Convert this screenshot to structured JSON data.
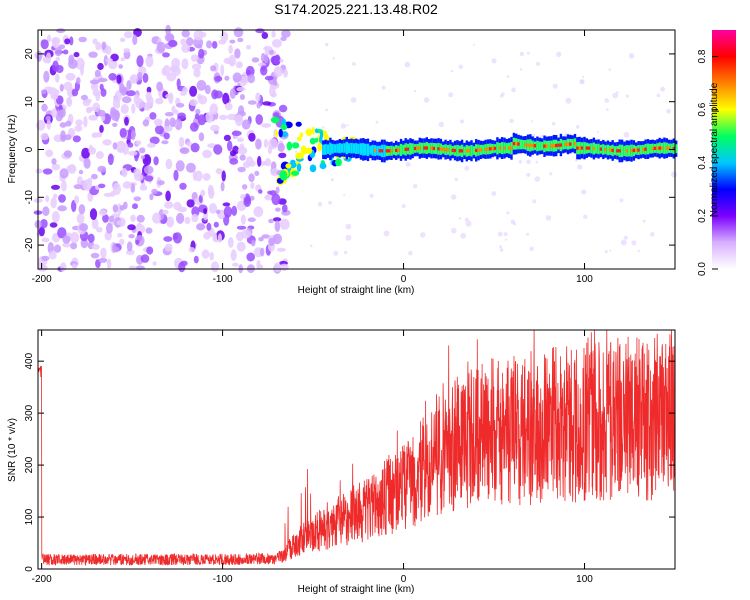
{
  "title": "S174.2025.221.13.48.R02",
  "chart_data": [
    {
      "type": "heatmap",
      "xlabel": "Height of straight line (km)",
      "ylabel": "Frequency (Hz)",
      "xlim": [
        -202,
        150
      ],
      "ylim": [
        -25,
        25
      ],
      "x_ticks": [
        -200,
        -100,
        0,
        100
      ],
      "y_ticks": [
        -20,
        -10,
        0,
        10,
        20
      ],
      "colorbar": {
        "label": "Normalized spectral amplitude",
        "range": [
          0.0,
          0.9
        ],
        "ticks": [
          0.0,
          0.2,
          0.4,
          0.6,
          0.8
        ],
        "colors": [
          "#ffffff",
          "#d8b0ff",
          "#7a00ff",
          "#0000ff",
          "#00c8ff",
          "#00ff60",
          "#ffff00",
          "#ff8000",
          "#ff0000",
          "#ff00a0"
        ]
      },
      "features": [
        {
          "name": "noise",
          "x_range": [
            -202,
            -65
          ],
          "f_range": [
            -25,
            25
          ],
          "amplitude": 0.15
        },
        {
          "name": "signal",
          "x_range": [
            -75,
            150
          ],
          "center_frequency": 0,
          "peak_amplitude": 0.9
        }
      ]
    },
    {
      "type": "line",
      "xlabel": "Height of straight line (km)",
      "ylabel": "SNR (10 * v/v)",
      "xlim": [
        -202,
        150
      ],
      "ylim": [
        0,
        460
      ],
      "x_ticks": [
        -200,
        -100,
        0,
        100
      ],
      "y_ticks": [
        0,
        100,
        200,
        300,
        400
      ],
      "color": "#ee2a2a",
      "series": [
        {
          "name": "SNR",
          "x": [
            -200,
            -150,
            -100,
            -70,
            -60,
            -50,
            -40,
            -30,
            -20,
            -10,
            0,
            10,
            20,
            30,
            40,
            50,
            60,
            70,
            80,
            90,
            100,
            110,
            120,
            130,
            140,
            150
          ],
          "values": [
            18,
            18,
            18,
            20,
            60,
            90,
            110,
            130,
            150,
            175,
            200,
            240,
            280,
            310,
            330,
            340,
            345,
            350,
            355,
            360,
            365,
            370,
            372,
            375,
            378,
            380
          ]
        }
      ]
    }
  ]
}
